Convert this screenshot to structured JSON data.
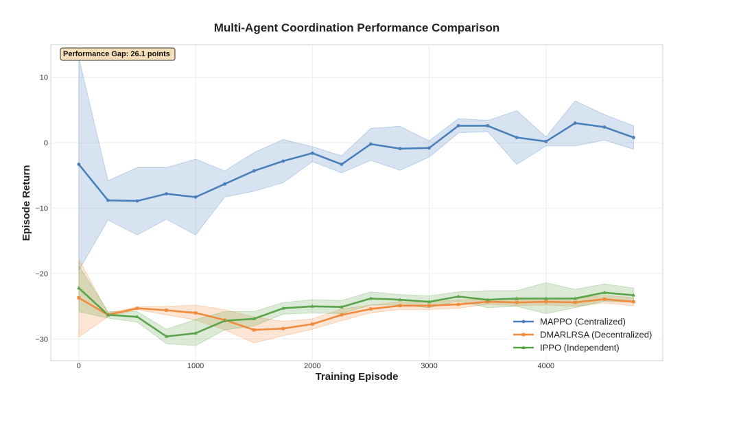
{
  "chart_data": {
    "type": "line",
    "title": "Multi-Agent Coordination Performance Comparison",
    "xlabel": "Training Episode",
    "ylabel": "Episode Return",
    "xlim": [
      -240,
      5000
    ],
    "ylim": [
      -33.3,
      15.0
    ],
    "x_ticks": [
      0,
      1000,
      2000,
      3000,
      4000
    ],
    "y_ticks": [
      10,
      0,
      -10,
      -20,
      -30
    ],
    "y_tick_labels": [
      "10",
      "0",
      "−10",
      "−20",
      "−30"
    ],
    "grid": true,
    "legend_position": "lower-right",
    "annotation": "Performance Gap: 26.1 points",
    "x": [
      0,
      250,
      500,
      750,
      1000,
      1250,
      1500,
      1750,
      2000,
      2250,
      2500,
      2750,
      3000,
      3250,
      3500,
      3750,
      4000,
      4250,
      4500,
      4750
    ],
    "series": [
      {
        "name": "MAPPO (Centralized)",
        "color": "#4a7fba",
        "values": [
          -3.3,
          -8.8,
          -8.9,
          -7.8,
          -8.3,
          -6.3,
          -4.3,
          -2.8,
          -1.6,
          -3.3,
          -0.2,
          -0.9,
          -0.8,
          2.6,
          2.6,
          0.8,
          0.2,
          3.0,
          2.4,
          0.8
        ],
        "upper": [
          13.0,
          -5.8,
          -3.8,
          -3.8,
          -2.5,
          -4.3,
          -1.5,
          0.5,
          -0.6,
          -2.0,
          2.2,
          2.5,
          0.3,
          3.7,
          3.4,
          4.9,
          0.9,
          6.4,
          4.3,
          2.6
        ],
        "lower": [
          -19.5,
          -11.8,
          -14.1,
          -11.7,
          -14.1,
          -8.3,
          -7.4,
          -6.1,
          -2.9,
          -4.6,
          -2.7,
          -4.2,
          -2.2,
          1.5,
          1.7,
          -3.3,
          -0.5,
          -0.5,
          0.4,
          -1.0
        ]
      },
      {
        "name": "DMARLRSA (Decentralized)",
        "color": "#f08a3c",
        "values": [
          -23.7,
          -26.3,
          -25.3,
          -25.6,
          -26.0,
          -27.1,
          -28.6,
          -28.4,
          -27.7,
          -26.3,
          -25.4,
          -24.9,
          -24.9,
          -24.7,
          -24.3,
          -24.4,
          -24.3,
          -24.4,
          -23.9,
          -24.3
        ],
        "upper": [
          -17.8,
          -26.0,
          -25.1,
          -25.0,
          -24.8,
          -25.5,
          -26.6,
          -27.3,
          -26.9,
          -25.4,
          -24.8,
          -24.3,
          -24.3,
          -24.0,
          -23.9,
          -23.9,
          -23.8,
          -23.8,
          -23.3,
          -23.7
        ],
        "lower": [
          -29.7,
          -26.6,
          -25.5,
          -26.3,
          -27.1,
          -28.6,
          -30.6,
          -29.5,
          -28.5,
          -27.2,
          -26.0,
          -25.5,
          -25.5,
          -25.3,
          -24.7,
          -24.9,
          -24.8,
          -25.0,
          -24.5,
          -24.9
        ]
      },
      {
        "name": "IPPO (Independent)",
        "color": "#5aa34a",
        "values": [
          -22.2,
          -26.3,
          -26.6,
          -29.6,
          -29.1,
          -27.2,
          -26.9,
          -25.3,
          -25.0,
          -25.1,
          -23.8,
          -24.0,
          -24.3,
          -23.5,
          -24.0,
          -23.8,
          -23.8,
          -23.8,
          -22.9,
          -23.3
        ],
        "upper": [
          -18.8,
          -25.8,
          -25.8,
          -28.5,
          -27.0,
          -25.8,
          -25.8,
          -24.4,
          -24.0,
          -24.1,
          -22.8,
          -23.2,
          -23.4,
          -22.8,
          -22.6,
          -22.6,
          -21.4,
          -22.4,
          -21.6,
          -22.2
        ],
        "lower": [
          -25.8,
          -26.8,
          -27.4,
          -30.7,
          -31.0,
          -28.6,
          -28.0,
          -26.2,
          -26.0,
          -26.1,
          -24.8,
          -24.8,
          -25.2,
          -24.2,
          -25.2,
          -25.0,
          -26.1,
          -25.2,
          -24.2,
          -24.4
        ]
      }
    ]
  }
}
